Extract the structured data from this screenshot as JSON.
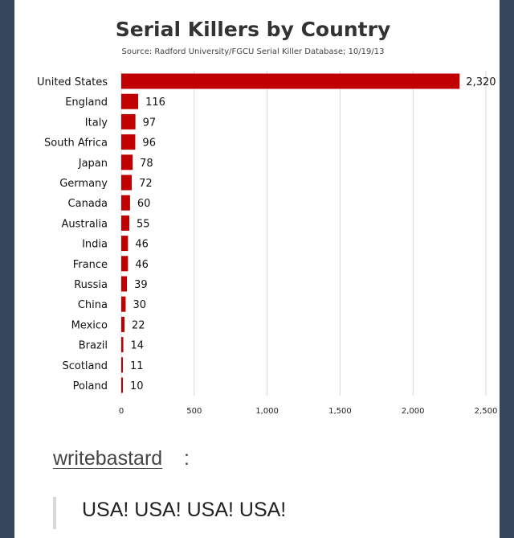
{
  "chart_data": {
    "type": "bar",
    "orientation": "horizontal",
    "title": "Serial Killers by Country",
    "subtitle": "Source: Radford University/FGCU Serial Killer Database; 10/19/13",
    "categories": [
      "United States",
      "England",
      "Italy",
      "South Africa",
      "Japan",
      "Germany",
      "Canada",
      "Australia",
      "India",
      "France",
      "Russia",
      "China",
      "Mexico",
      "Brazil",
      "Scotland",
      "Poland"
    ],
    "values": [
      2320,
      116,
      97,
      96,
      78,
      72,
      60,
      55,
      46,
      46,
      39,
      30,
      22,
      14,
      11,
      10
    ],
    "value_labels": [
      "2,320",
      "116",
      "97",
      "96",
      "78",
      "72",
      "60",
      "55",
      "46",
      "46",
      "39",
      "30",
      "22",
      "14",
      "11",
      "10"
    ],
    "xticks": [
      0,
      500,
      1000,
      1500,
      2000,
      2500
    ],
    "xtick_labels": [
      "0",
      "500",
      "1,000",
      "1,500",
      "2,000",
      "2,500"
    ],
    "xlim": [
      0,
      2500
    ],
    "grid": "vertical",
    "legend": "none",
    "bar_color": "#c00000"
  },
  "post": {
    "username": "writebastard",
    "colon": ":",
    "quote": "USA! USA! USA! USA!"
  },
  "colors": {
    "background": "#36465d",
    "post_bg": "#ffffff",
    "bar": "#c00000"
  }
}
